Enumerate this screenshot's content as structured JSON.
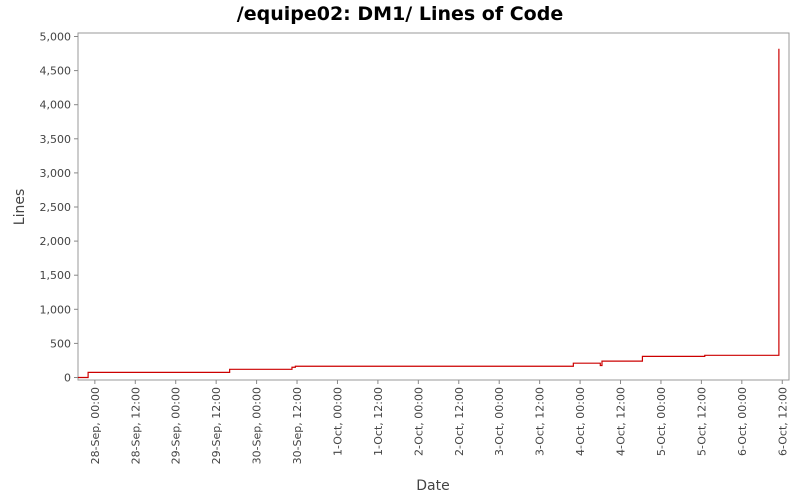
{
  "chart_data": {
    "type": "line",
    "title": "/equipe02: DM1/ Lines of Code",
    "xlabel": "Date",
    "ylabel": "Lines",
    "x_ticks": [
      "28-Sep, 00:00",
      "28-Sep, 12:00",
      "29-Sep, 00:00",
      "29-Sep, 12:00",
      "30-Sep, 00:00",
      "30-Sep, 12:00",
      "1-Oct, 00:00",
      "1-Oct, 12:00",
      "2-Oct, 00:00",
      "2-Oct, 12:00",
      "3-Oct, 00:00",
      "3-Oct, 12:00",
      "4-Oct, 00:00",
      "4-Oct, 12:00",
      "5-Oct, 00:00",
      "5-Oct, 12:00",
      "6-Oct, 00:00",
      "6-Oct, 12:00"
    ],
    "y_ticks": [
      "0",
      "500",
      "1,000",
      "1,500",
      "2,000",
      "2,500",
      "3,000",
      "3,500",
      "4,000",
      "4,500",
      "5,000"
    ],
    "y_tick_values": [
      0,
      500,
      1000,
      1500,
      2000,
      2500,
      3000,
      3500,
      4000,
      4500,
      5000
    ],
    "ylim": [
      0,
      5000
    ],
    "xlim": [
      "2009-09-27T19:00",
      "2009-10-06T14:00"
    ],
    "grid": false,
    "series": [
      {
        "color": "#cc0000",
        "step": true,
        "points": [
          {
            "x": "2009-09-27T19:00",
            "y": 0
          },
          {
            "x": "2009-09-27T22:00",
            "y": 0
          },
          {
            "x": "2009-09-27T22:00",
            "y": 75
          },
          {
            "x": "2009-09-29T16:00",
            "y": 75
          },
          {
            "x": "2009-09-29T16:00",
            "y": 120
          },
          {
            "x": "2009-09-30T10:30",
            "y": 120
          },
          {
            "x": "2009-09-30T10:30",
            "y": 150
          },
          {
            "x": "2009-09-30T11:30",
            "y": 150
          },
          {
            "x": "2009-09-30T11:30",
            "y": 165
          },
          {
            "x": "2009-10-03T22:00",
            "y": 165
          },
          {
            "x": "2009-10-03T22:00",
            "y": 210
          },
          {
            "x": "2009-10-04T06:00",
            "y": 210
          },
          {
            "x": "2009-10-04T06:00",
            "y": 175
          },
          {
            "x": "2009-10-04T06:30",
            "y": 175
          },
          {
            "x": "2009-10-04T06:30",
            "y": 240
          },
          {
            "x": "2009-10-04T18:30",
            "y": 240
          },
          {
            "x": "2009-10-04T18:30",
            "y": 310
          },
          {
            "x": "2009-10-05T13:00",
            "y": 310
          },
          {
            "x": "2009-10-05T13:00",
            "y": 325
          },
          {
            "x": "2009-10-06T11:00",
            "y": 325
          },
          {
            "x": "2009-10-06T11:00",
            "y": 4820
          }
        ]
      }
    ]
  }
}
